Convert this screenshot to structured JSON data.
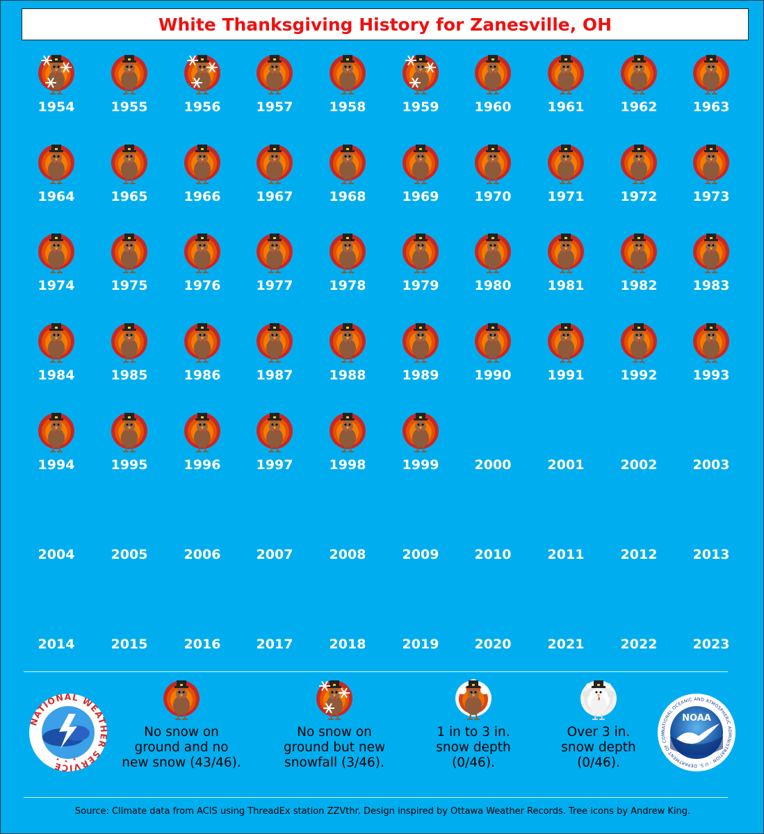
{
  "title": "White Thanksgiving History for Zanesville, OH",
  "colors": {
    "background": "#00AEEF",
    "title": "#EE1111",
    "year_text": "#FFFFFF"
  },
  "icons": {
    "no_snow": "brown-turkey-icon",
    "new_snowfall": "brown-turkey-with-snowflakes-icon",
    "snow_1_3": "partially-snow-covered-turkey-icon",
    "snow_over_3": "white-turkey-icon"
  },
  "years": [
    {
      "year": "1954",
      "status": "new_snowfall"
    },
    {
      "year": "1955",
      "status": "no_snow"
    },
    {
      "year": "1956",
      "status": "new_snowfall"
    },
    {
      "year": "1957",
      "status": "no_snow"
    },
    {
      "year": "1958",
      "status": "no_snow"
    },
    {
      "year": "1959",
      "status": "new_snowfall"
    },
    {
      "year": "1960",
      "status": "no_snow"
    },
    {
      "year": "1961",
      "status": "no_snow"
    },
    {
      "year": "1962",
      "status": "no_snow"
    },
    {
      "year": "1963",
      "status": "no_snow"
    },
    {
      "year": "1964",
      "status": "no_snow"
    },
    {
      "year": "1965",
      "status": "no_snow"
    },
    {
      "year": "1966",
      "status": "no_snow"
    },
    {
      "year": "1967",
      "status": "no_snow"
    },
    {
      "year": "1968",
      "status": "no_snow"
    },
    {
      "year": "1969",
      "status": "no_snow"
    },
    {
      "year": "1970",
      "status": "no_snow"
    },
    {
      "year": "1971",
      "status": "no_snow"
    },
    {
      "year": "1972",
      "status": "no_snow"
    },
    {
      "year": "1973",
      "status": "no_snow"
    },
    {
      "year": "1974",
      "status": "no_snow"
    },
    {
      "year": "1975",
      "status": "no_snow"
    },
    {
      "year": "1976",
      "status": "no_snow"
    },
    {
      "year": "1977",
      "status": "no_snow"
    },
    {
      "year": "1978",
      "status": "no_snow"
    },
    {
      "year": "1979",
      "status": "no_snow"
    },
    {
      "year": "1980",
      "status": "no_snow"
    },
    {
      "year": "1981",
      "status": "no_snow"
    },
    {
      "year": "1982",
      "status": "no_snow"
    },
    {
      "year": "1983",
      "status": "no_snow"
    },
    {
      "year": "1984",
      "status": "no_snow"
    },
    {
      "year": "1985",
      "status": "no_snow"
    },
    {
      "year": "1986",
      "status": "no_snow"
    },
    {
      "year": "1987",
      "status": "no_snow"
    },
    {
      "year": "1988",
      "status": "no_snow"
    },
    {
      "year": "1989",
      "status": "no_snow"
    },
    {
      "year": "1990",
      "status": "no_snow"
    },
    {
      "year": "1991",
      "status": "no_snow"
    },
    {
      "year": "1992",
      "status": "no_snow"
    },
    {
      "year": "1993",
      "status": "no_snow"
    },
    {
      "year": "1994",
      "status": "no_snow"
    },
    {
      "year": "1995",
      "status": "no_snow"
    },
    {
      "year": "1996",
      "status": "no_snow"
    },
    {
      "year": "1997",
      "status": "no_snow"
    },
    {
      "year": "1998",
      "status": "no_snow"
    },
    {
      "year": "1999",
      "status": "no_snow"
    },
    {
      "year": "2000",
      "status": "none"
    },
    {
      "year": "2001",
      "status": "none"
    },
    {
      "year": "2002",
      "status": "none"
    },
    {
      "year": "2003",
      "status": "none"
    },
    {
      "year": "2004",
      "status": "none"
    },
    {
      "year": "2005",
      "status": "none"
    },
    {
      "year": "2006",
      "status": "none"
    },
    {
      "year": "2007",
      "status": "none"
    },
    {
      "year": "2008",
      "status": "none"
    },
    {
      "year": "2009",
      "status": "none"
    },
    {
      "year": "2010",
      "status": "none"
    },
    {
      "year": "2011",
      "status": "none"
    },
    {
      "year": "2012",
      "status": "none"
    },
    {
      "year": "2013",
      "status": "none"
    },
    {
      "year": "2014",
      "status": "none"
    },
    {
      "year": "2015",
      "status": "none"
    },
    {
      "year": "2016",
      "status": "none"
    },
    {
      "year": "2017",
      "status": "none"
    },
    {
      "year": "2018",
      "status": "none"
    },
    {
      "year": "2019",
      "status": "none"
    },
    {
      "year": "2020",
      "status": "none"
    },
    {
      "year": "2021",
      "status": "none"
    },
    {
      "year": "2022",
      "status": "none"
    },
    {
      "year": "2023",
      "status": "none"
    }
  ],
  "legend": {
    "no_snow": [
      "No snow on",
      "ground and no",
      "new snow (43/46)."
    ],
    "new_snowfall": [
      "No snow on",
      "ground but new",
      "snowfall (3/46)."
    ],
    "snow_1_3": [
      "1 in to 3 in.",
      "snow depth",
      "(0/46)."
    ],
    "snow_over_3": [
      "Over 3 in.",
      "snow depth",
      "(0/46)."
    ]
  },
  "logos": {
    "nws_text": "NATIONAL WEATHER SERVICE",
    "noaa_text": "NOAA",
    "noaa_ring_text": "NATIONAL OCEANIC AND ATMOSPHERIC ADMINISTRATION · U.S. DEPARTMENT OF COMMERCE"
  },
  "source": "Source: Climate data from ACIS using ThreadEx station ZZVthr. Design inspired by Ottawa Weather Records. Tree icons by Andrew King."
}
